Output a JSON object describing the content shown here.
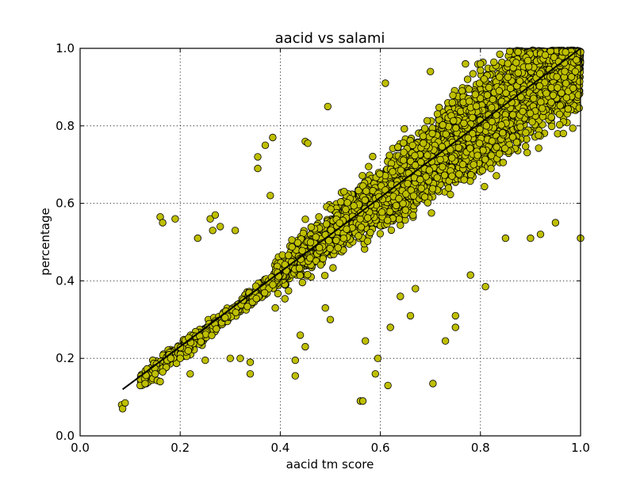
{
  "chart_data": {
    "type": "scatter",
    "title": "aacid vs salami",
    "xlabel": "aacid tm score",
    "ylabel": "percentage",
    "xlim": [
      0.0,
      1.0
    ],
    "ylim": [
      0.0,
      1.0
    ],
    "grid": true,
    "grid_style": "dotted",
    "x_ticks": [
      "0.0",
      "0.2",
      "0.4",
      "0.6",
      "0.8",
      "1.0"
    ],
    "y_ticks": [
      "0.0",
      "0.2",
      "0.4",
      "0.6",
      "0.8",
      "1.0"
    ],
    "marker_color": "#bfbf00",
    "marker_edge_color": "#000000",
    "line_color": "#000000",
    "trend_line": {
      "x": [
        0.085,
        1.0
      ],
      "y": [
        0.12,
        1.0
      ]
    },
    "series": [
      {
        "points_sample": [
          [
            0.083,
            0.08
          ],
          [
            0.085,
            0.07
          ],
          [
            0.09,
            0.085
          ],
          [
            0.12,
            0.13
          ],
          [
            0.13,
            0.135
          ],
          [
            0.15,
            0.16
          ],
          [
            0.16,
            0.14
          ],
          [
            0.165,
            0.165
          ],
          [
            0.16,
            0.565
          ],
          [
            0.165,
            0.55
          ],
          [
            0.19,
            0.56
          ],
          [
            0.2,
            0.2
          ],
          [
            0.22,
            0.16
          ],
          [
            0.235,
            0.51
          ],
          [
            0.25,
            0.195
          ],
          [
            0.26,
            0.56
          ],
          [
            0.265,
            0.53
          ],
          [
            0.27,
            0.57
          ],
          [
            0.28,
            0.54
          ],
          [
            0.3,
            0.2
          ],
          [
            0.31,
            0.53
          ],
          [
            0.32,
            0.2
          ],
          [
            0.34,
            0.19
          ],
          [
            0.34,
            0.16
          ],
          [
            0.355,
            0.72
          ],
          [
            0.355,
            0.69
          ],
          [
            0.37,
            0.75
          ],
          [
            0.385,
            0.77
          ],
          [
            0.38,
            0.62
          ],
          [
            0.39,
            0.33
          ],
          [
            0.43,
            0.155
          ],
          [
            0.43,
            0.195
          ],
          [
            0.44,
            0.26
          ],
          [
            0.45,
            0.23
          ],
          [
            0.45,
            0.76
          ],
          [
            0.455,
            0.755
          ],
          [
            0.49,
            0.33
          ],
          [
            0.5,
            0.3
          ],
          [
            0.495,
            0.85
          ],
          [
            0.56,
            0.09
          ],
          [
            0.565,
            0.09
          ],
          [
            0.57,
            0.245
          ],
          [
            0.59,
            0.16
          ],
          [
            0.595,
            0.2
          ],
          [
            0.61,
            0.91
          ],
          [
            0.615,
            0.13
          ],
          [
            0.62,
            0.28
          ],
          [
            0.64,
            0.36
          ],
          [
            0.66,
            0.31
          ],
          [
            0.67,
            0.38
          ],
          [
            0.7,
            0.94
          ],
          [
            0.705,
            0.135
          ],
          [
            0.73,
            0.245
          ],
          [
            0.75,
            0.28
          ],
          [
            0.75,
            0.31
          ],
          [
            0.77,
            0.96
          ],
          [
            0.78,
            0.415
          ],
          [
            0.8,
            0.96
          ],
          [
            0.81,
            0.385
          ],
          [
            0.85,
            0.51
          ],
          [
            0.9,
            0.51
          ],
          [
            0.92,
            0.52
          ],
          [
            0.95,
            0.55
          ],
          [
            0.97,
            0.99
          ],
          [
            1.0,
            0.51
          ],
          [
            1.0,
            0.99
          ]
        ]
      }
    ]
  }
}
